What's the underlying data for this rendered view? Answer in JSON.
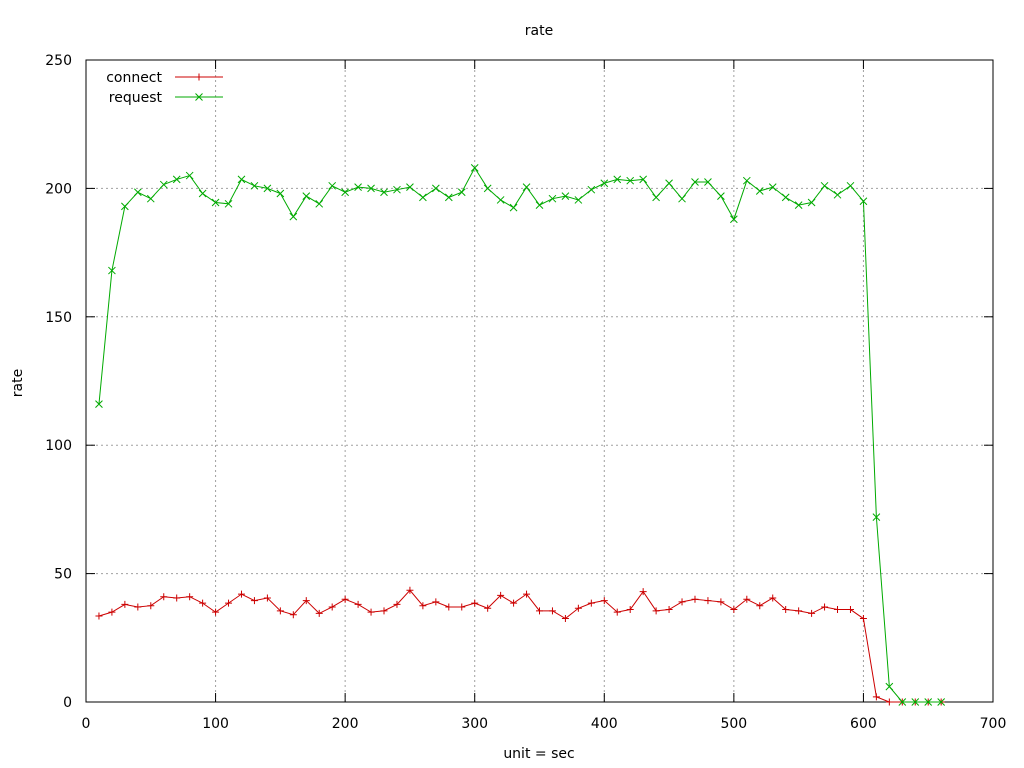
{
  "chart_data": {
    "type": "line",
    "title": "rate",
    "xlabel": "unit = sec",
    "ylabel": "rate",
    "xlim": [
      0,
      700
    ],
    "ylim": [
      0,
      250
    ],
    "xticks": [
      0,
      100,
      200,
      300,
      400,
      500,
      600,
      700
    ],
    "yticks": [
      0,
      50,
      100,
      150,
      200,
      250
    ],
    "grid": true,
    "legend_position": "top-left",
    "x": [
      10,
      20,
      30,
      40,
      50,
      60,
      70,
      80,
      90,
      100,
      110,
      120,
      130,
      140,
      150,
      160,
      170,
      180,
      190,
      200,
      210,
      220,
      230,
      240,
      250,
      260,
      270,
      280,
      290,
      300,
      310,
      320,
      330,
      340,
      350,
      360,
      370,
      380,
      390,
      400,
      410,
      420,
      430,
      440,
      450,
      460,
      470,
      480,
      490,
      500,
      510,
      520,
      530,
      540,
      550,
      560,
      570,
      580,
      590,
      600,
      610,
      620,
      630,
      640,
      650,
      660
    ],
    "series": [
      {
        "name": "connect",
        "color": "#cc0000",
        "marker": "+",
        "values": [
          33.5,
          35,
          38,
          37,
          37.5,
          41,
          40.5,
          41,
          38.5,
          35,
          38.5,
          42,
          39.5,
          40.5,
          35.5,
          34,
          39.5,
          34.5,
          37,
          40,
          38,
          35,
          35.5,
          38,
          43.5,
          37.5,
          39,
          37,
          37,
          38.5,
          36.5,
          41.5,
          38.5,
          42,
          35.5,
          35.5,
          32.5,
          36.5,
          38.5,
          39.5,
          35,
          36,
          43,
          35.5,
          36,
          39,
          40,
          39.5,
          39,
          36,
          40,
          37.5,
          40.5,
          36,
          35.5,
          34.5,
          37,
          36,
          36,
          32.5,
          2,
          0,
          0,
          0,
          0,
          0
        ]
      },
      {
        "name": "request",
        "color": "#00aa00",
        "marker": "x",
        "values": [
          116,
          168,
          193,
          198.5,
          196,
          201.5,
          203.5,
          205,
          198,
          194.5,
          194,
          203.5,
          201,
          200,
          198,
          189,
          197,
          194,
          201,
          198.5,
          200.5,
          200,
          198.5,
          199.5,
          200.5,
          196.5,
          200,
          196.5,
          198.5,
          208,
          200,
          195.5,
          192.5,
          200.5,
          193.5,
          196,
          197,
          195.5,
          199.5,
          202,
          203.5,
          203,
          203.5,
          196.5,
          202,
          196,
          202.5,
          202.5,
          197,
          188,
          203,
          199,
          200.5,
          196.5,
          193.5,
          194.5,
          201,
          197.5,
          201,
          195,
          72,
          6,
          0,
          0,
          0,
          0
        ]
      }
    ]
  }
}
